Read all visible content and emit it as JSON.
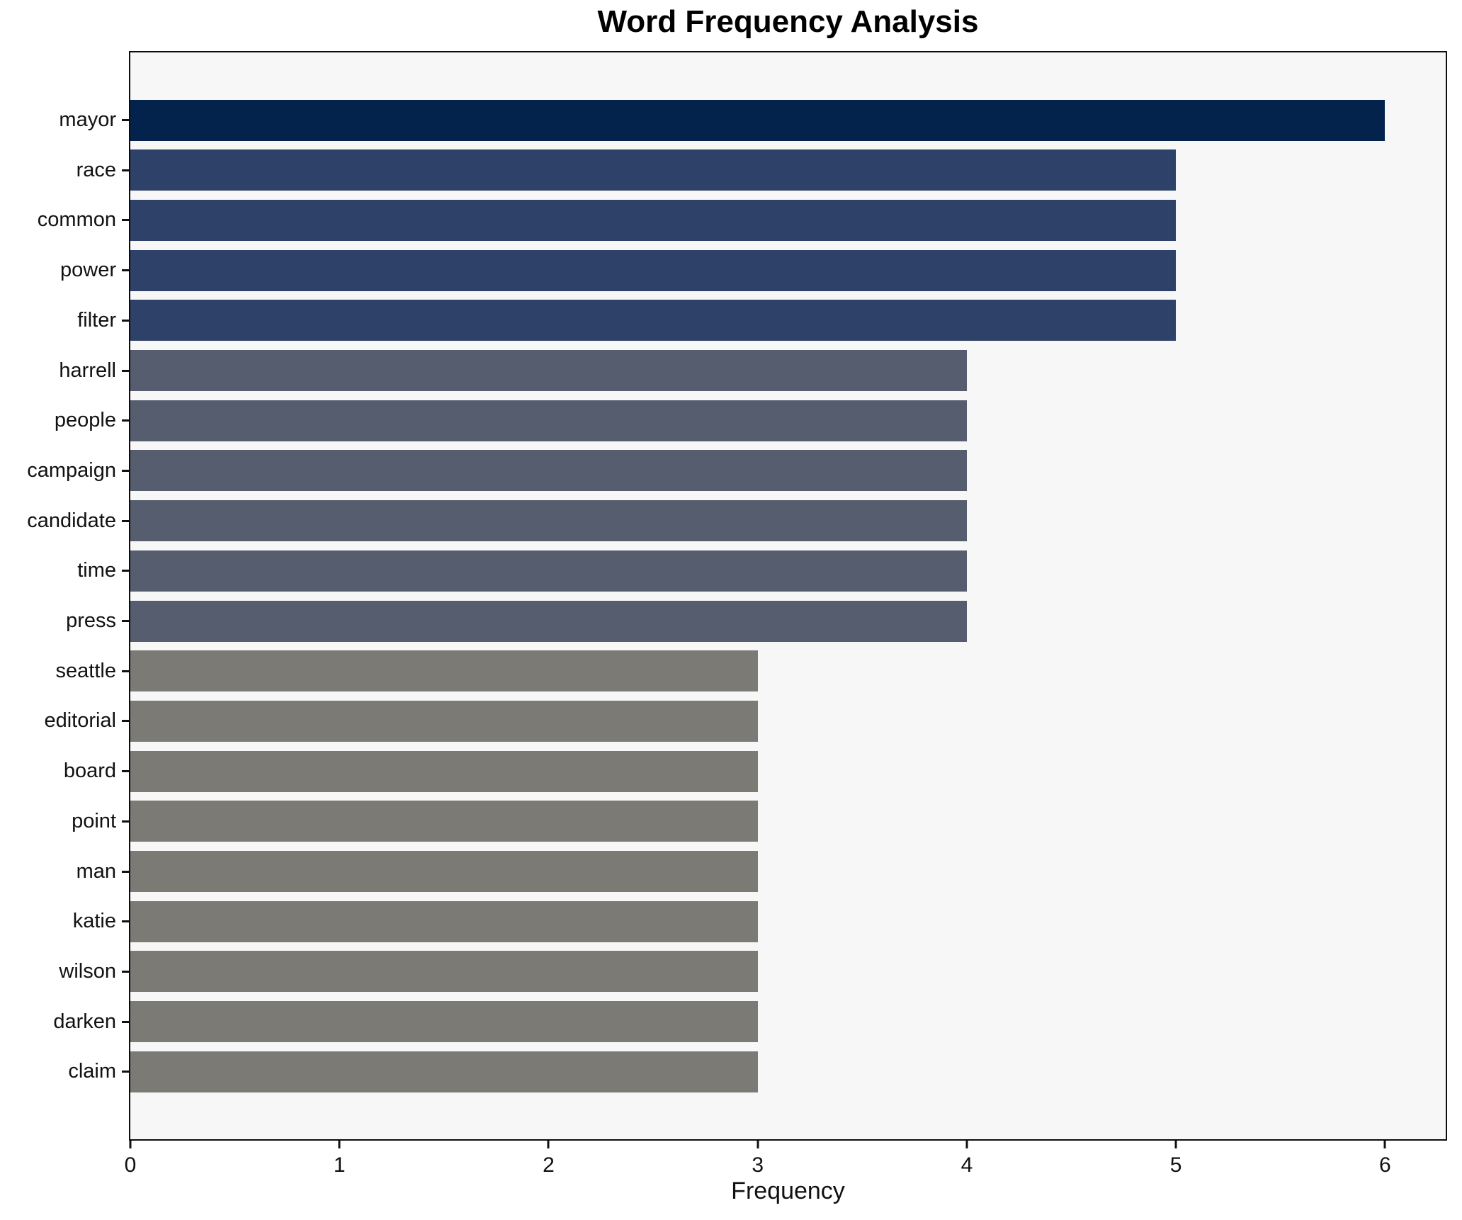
{
  "chart_data": {
    "type": "bar",
    "orientation": "horizontal",
    "title": "Word Frequency Analysis",
    "xlabel": "Frequency",
    "ylabel": "",
    "categories": [
      "mayor",
      "race",
      "common",
      "power",
      "filter",
      "harrell",
      "people",
      "campaign",
      "candidate",
      "time",
      "press",
      "seattle",
      "editorial",
      "board",
      "point",
      "man",
      "katie",
      "wilson",
      "darken",
      "claim"
    ],
    "values": [
      6,
      5,
      5,
      5,
      5,
      4,
      4,
      4,
      4,
      4,
      4,
      3,
      3,
      3,
      3,
      3,
      3,
      3,
      3,
      3
    ],
    "xticks": [
      0,
      1,
      2,
      3,
      4,
      5,
      6
    ],
    "xlim": [
      0,
      6.29
    ],
    "grid": false,
    "legend": null,
    "colors": {
      "value_6": "#03234d",
      "value_5": "#2e4169",
      "value_4": "#565d6e",
      "value_3": "#7b7a75"
    },
    "plot_background": "#f7f7f7",
    "figure_background": "#ffffff",
    "spine_color": "#0d0d0d",
    "text_color": "#111111"
  }
}
